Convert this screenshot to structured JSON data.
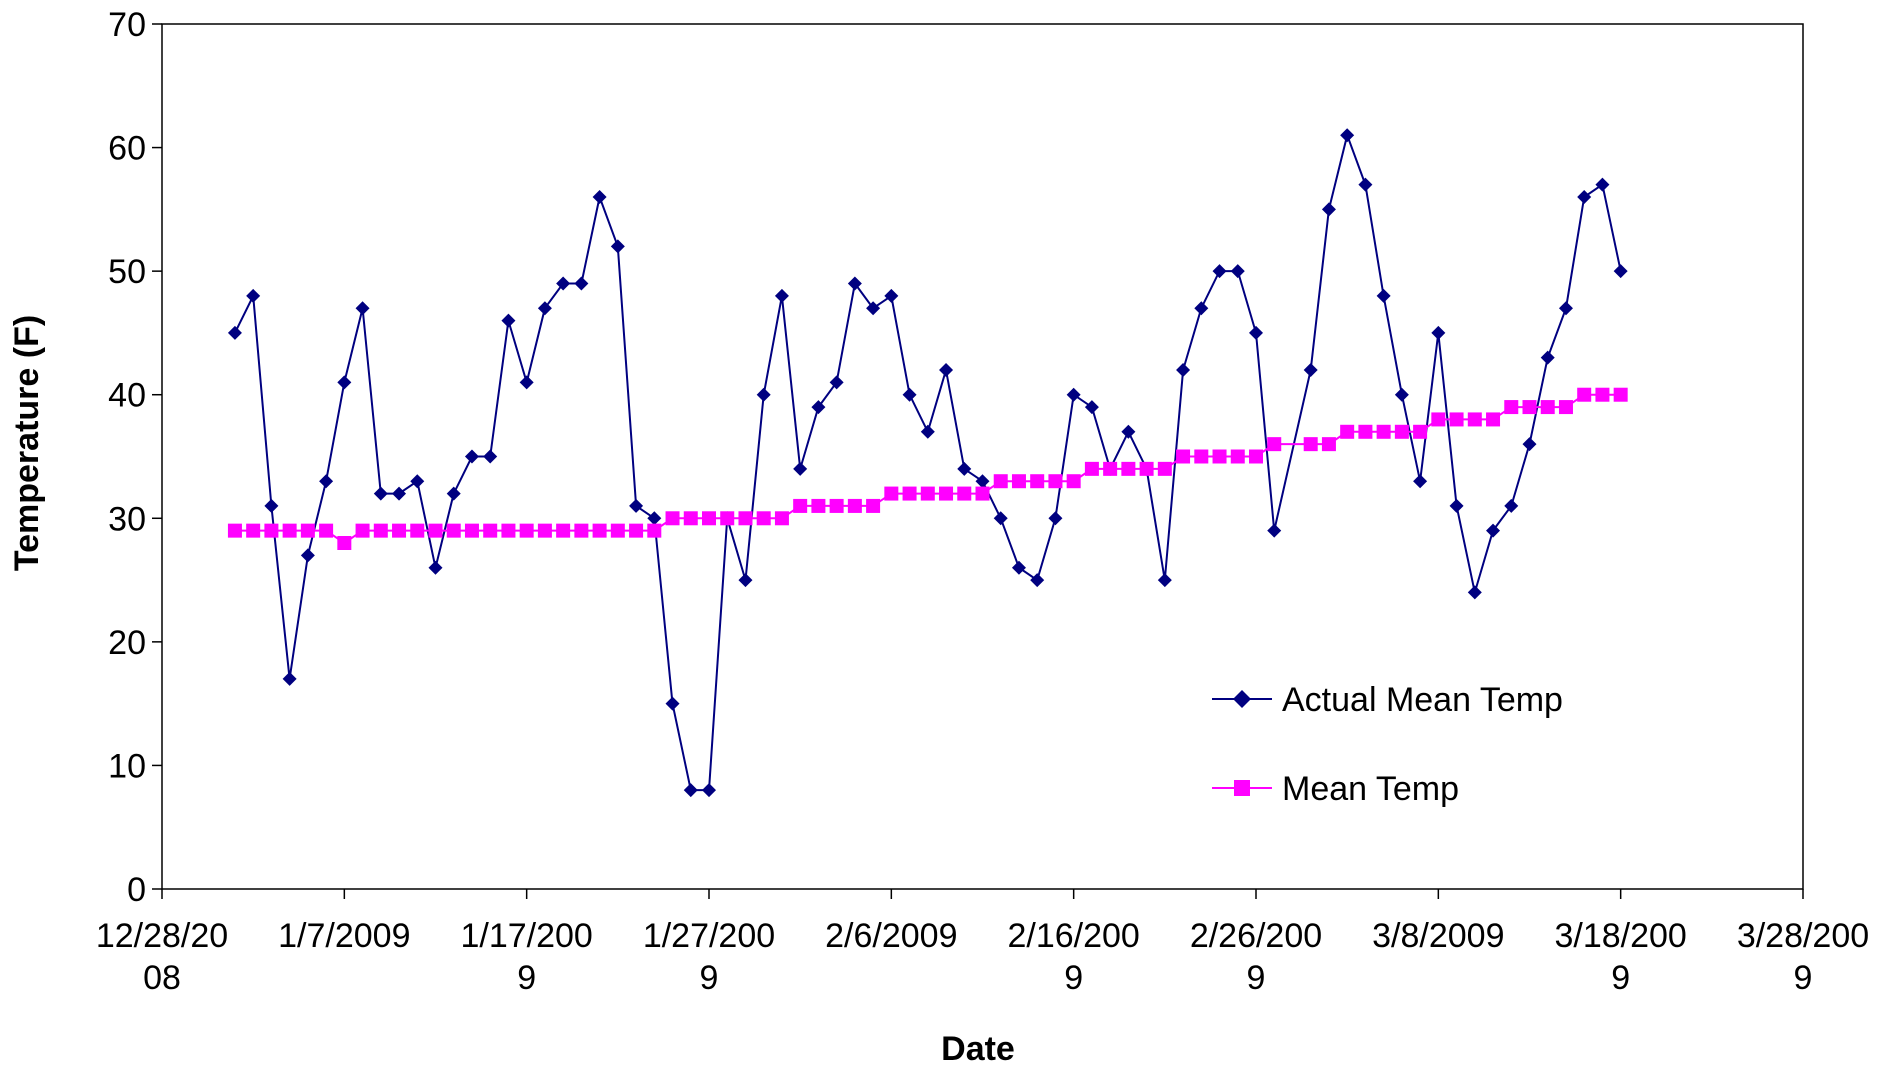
{
  "chart_data": {
    "type": "line",
    "title": "",
    "xlabel": "Date",
    "ylabel": "Temperature (F)",
    "ylim": [
      0,
      70
    ],
    "yticks": [
      "0",
      "10",
      "20",
      "30",
      "40",
      "50",
      "60",
      "70"
    ],
    "xlim": [
      "2008-12-28",
      "2009-03-28"
    ],
    "xticks": [
      {
        "date": "2008-12-28",
        "lines": [
          "12/28/20",
          "08"
        ]
      },
      {
        "date": "2009-01-07",
        "lines": [
          "1/7/2009"
        ]
      },
      {
        "date": "2009-01-17",
        "lines": [
          "1/17/200",
          "9"
        ]
      },
      {
        "date": "2009-01-27",
        "lines": [
          "1/27/200",
          "9"
        ]
      },
      {
        "date": "2009-02-06",
        "lines": [
          "2/6/2009"
        ]
      },
      {
        "date": "2009-02-16",
        "lines": [
          "2/16/200",
          "9"
        ]
      },
      {
        "date": "2009-02-26",
        "lines": [
          "2/26/200",
          "9"
        ]
      },
      {
        "date": "2009-03-08",
        "lines": [
          "3/8/2009"
        ]
      },
      {
        "date": "2009-03-18",
        "lines": [
          "3/18/200",
          "9"
        ]
      },
      {
        "date": "2009-03-28",
        "lines": [
          "3/28/200",
          "9"
        ]
      }
    ],
    "grid": false,
    "legend_position": "lower-right",
    "series": [
      {
        "name": "Actual Mean Temp",
        "color": "#000080",
        "marker": "diamond",
        "points": [
          [
            "2009-01-01",
            45
          ],
          [
            "2009-01-02",
            48
          ],
          [
            "2009-01-03",
            31
          ],
          [
            "2009-01-04",
            17
          ],
          [
            "2009-01-05",
            27
          ],
          [
            "2009-01-06",
            33
          ],
          [
            "2009-01-07",
            41
          ],
          [
            "2009-01-08",
            47
          ],
          [
            "2009-01-09",
            32
          ],
          [
            "2009-01-10",
            32
          ],
          [
            "2009-01-11",
            33
          ],
          [
            "2009-01-12",
            26
          ],
          [
            "2009-01-13",
            32
          ],
          [
            "2009-01-14",
            35
          ],
          [
            "2009-01-15",
            35
          ],
          [
            "2009-01-16",
            46
          ],
          [
            "2009-01-17",
            41
          ],
          [
            "2009-01-18",
            47
          ],
          [
            "2009-01-19",
            49
          ],
          [
            "2009-01-20",
            49
          ],
          [
            "2009-01-21",
            56
          ],
          [
            "2009-01-22",
            52
          ],
          [
            "2009-01-23",
            31
          ],
          [
            "2009-01-24",
            30
          ],
          [
            "2009-01-25",
            15
          ],
          [
            "2009-01-26",
            8
          ],
          [
            "2009-01-27",
            8
          ],
          [
            "2009-01-28",
            30
          ],
          [
            "2009-01-29",
            25
          ],
          [
            "2009-01-30",
            40
          ],
          [
            "2009-01-31",
            48
          ],
          [
            "2009-02-01",
            34
          ],
          [
            "2009-02-02",
            39
          ],
          [
            "2009-02-03",
            41
          ],
          [
            "2009-02-04",
            49
          ],
          [
            "2009-02-05",
            47
          ],
          [
            "2009-02-06",
            48
          ],
          [
            "2009-02-07",
            40
          ],
          [
            "2009-02-08",
            37
          ],
          [
            "2009-02-09",
            42
          ],
          [
            "2009-02-10",
            34
          ],
          [
            "2009-02-11",
            33
          ],
          [
            "2009-02-12",
            30
          ],
          [
            "2009-02-13",
            26
          ],
          [
            "2009-02-14",
            25
          ],
          [
            "2009-02-15",
            30
          ],
          [
            "2009-02-16",
            40
          ],
          [
            "2009-02-17",
            39
          ],
          [
            "2009-02-18",
            34
          ],
          [
            "2009-02-19",
            37
          ],
          [
            "2009-02-20",
            34
          ],
          [
            "2009-02-21",
            25
          ],
          [
            "2009-02-22",
            42
          ],
          [
            "2009-02-23",
            47
          ],
          [
            "2009-02-24",
            50
          ],
          [
            "2009-02-25",
            50
          ],
          [
            "2009-02-26",
            45
          ],
          [
            "2009-02-27",
            29
          ],
          [
            "2009-03-01",
            42
          ],
          [
            "2009-03-02",
            55
          ],
          [
            "2009-03-03",
            61
          ],
          [
            "2009-03-04",
            57
          ],
          [
            "2009-03-05",
            48
          ],
          [
            "2009-03-06",
            40
          ],
          [
            "2009-03-07",
            33
          ],
          [
            "2009-03-08",
            45
          ],
          [
            "2009-03-09",
            31
          ],
          [
            "2009-03-10",
            24
          ],
          [
            "2009-03-11",
            29
          ],
          [
            "2009-03-12",
            31
          ],
          [
            "2009-03-13",
            36
          ],
          [
            "2009-03-14",
            43
          ],
          [
            "2009-03-15",
            47
          ],
          [
            "2009-03-16",
            56
          ],
          [
            "2009-03-17",
            57
          ],
          [
            "2009-03-18",
            50
          ]
        ]
      },
      {
        "name": "Mean Temp",
        "color": "#FF00FF",
        "marker": "square",
        "points": [
          [
            "2009-01-01",
            29
          ],
          [
            "2009-01-02",
            29
          ],
          [
            "2009-01-03",
            29
          ],
          [
            "2009-01-04",
            29
          ],
          [
            "2009-01-05",
            29
          ],
          [
            "2009-01-06",
            29
          ],
          [
            "2009-01-07",
            28
          ],
          [
            "2009-01-08",
            29
          ],
          [
            "2009-01-09",
            29
          ],
          [
            "2009-01-10",
            29
          ],
          [
            "2009-01-11",
            29
          ],
          [
            "2009-01-12",
            29
          ],
          [
            "2009-01-13",
            29
          ],
          [
            "2009-01-14",
            29
          ],
          [
            "2009-01-15",
            29
          ],
          [
            "2009-01-16",
            29
          ],
          [
            "2009-01-17",
            29
          ],
          [
            "2009-01-18",
            29
          ],
          [
            "2009-01-19",
            29
          ],
          [
            "2009-01-20",
            29
          ],
          [
            "2009-01-21",
            29
          ],
          [
            "2009-01-22",
            29
          ],
          [
            "2009-01-23",
            29
          ],
          [
            "2009-01-24",
            29
          ],
          [
            "2009-01-25",
            30
          ],
          [
            "2009-01-26",
            30
          ],
          [
            "2009-01-27",
            30
          ],
          [
            "2009-01-28",
            30
          ],
          [
            "2009-01-29",
            30
          ],
          [
            "2009-01-30",
            30
          ],
          [
            "2009-01-31",
            30
          ],
          [
            "2009-02-01",
            31
          ],
          [
            "2009-02-02",
            31
          ],
          [
            "2009-02-03",
            31
          ],
          [
            "2009-02-04",
            31
          ],
          [
            "2009-02-05",
            31
          ],
          [
            "2009-02-06",
            32
          ],
          [
            "2009-02-07",
            32
          ],
          [
            "2009-02-08",
            32
          ],
          [
            "2009-02-09",
            32
          ],
          [
            "2009-02-10",
            32
          ],
          [
            "2009-02-11",
            32
          ],
          [
            "2009-02-12",
            33
          ],
          [
            "2009-02-13",
            33
          ],
          [
            "2009-02-14",
            33
          ],
          [
            "2009-02-15",
            33
          ],
          [
            "2009-02-16",
            33
          ],
          [
            "2009-02-17",
            34
          ],
          [
            "2009-02-18",
            34
          ],
          [
            "2009-02-19",
            34
          ],
          [
            "2009-02-20",
            34
          ],
          [
            "2009-02-21",
            34
          ],
          [
            "2009-02-22",
            35
          ],
          [
            "2009-02-23",
            35
          ],
          [
            "2009-02-24",
            35
          ],
          [
            "2009-02-25",
            35
          ],
          [
            "2009-02-26",
            35
          ],
          [
            "2009-02-27",
            36
          ],
          [
            "2009-03-01",
            36
          ],
          [
            "2009-03-02",
            36
          ],
          [
            "2009-03-03",
            37
          ],
          [
            "2009-03-04",
            37
          ],
          [
            "2009-03-05",
            37
          ],
          [
            "2009-03-06",
            37
          ],
          [
            "2009-03-07",
            37
          ],
          [
            "2009-03-08",
            38
          ],
          [
            "2009-03-09",
            38
          ],
          [
            "2009-03-10",
            38
          ],
          [
            "2009-03-11",
            38
          ],
          [
            "2009-03-12",
            39
          ],
          [
            "2009-03-13",
            39
          ],
          [
            "2009-03-14",
            39
          ],
          [
            "2009-03-15",
            39
          ],
          [
            "2009-03-16",
            40
          ],
          [
            "2009-03-17",
            40
          ],
          [
            "2009-03-18",
            40
          ]
        ]
      }
    ]
  }
}
